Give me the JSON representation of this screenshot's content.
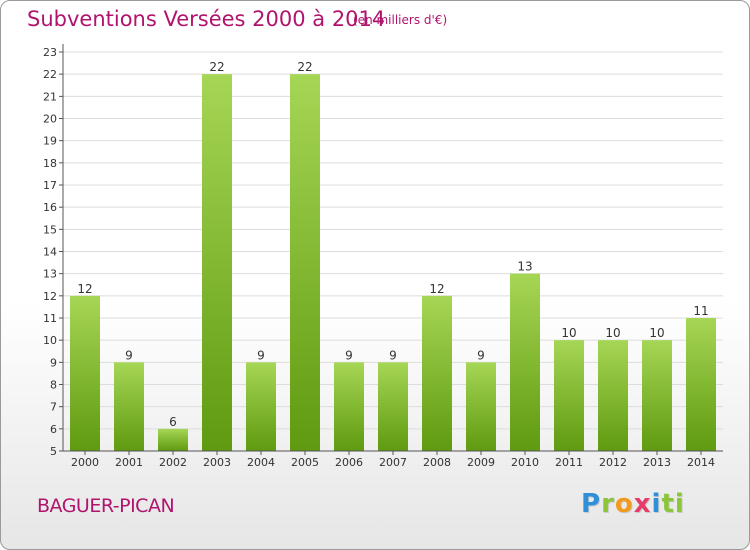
{
  "header": {
    "title": "Subventions Versées 2000 à 2014",
    "subtitle": "(en milliers d'€)"
  },
  "footer": {
    "commune": "BAGUER-PICAN",
    "logo_text": "Proxiti"
  },
  "colors": {
    "title": "#b0146d",
    "bar_top": "#a6d655",
    "bar_bottom": "#5f9a10",
    "grid": "#dcdcdc",
    "axis": "#555555"
  },
  "chart_data": {
    "type": "bar",
    "title": "Subventions Versées 2000 à 2014",
    "subtitle": "(en milliers d'€)",
    "categories": [
      "2000",
      "2001",
      "2002",
      "2003",
      "2004",
      "2005",
      "2006",
      "2007",
      "2008",
      "2009",
      "2010",
      "2011",
      "2012",
      "2013",
      "2014"
    ],
    "values": [
      12,
      9,
      6,
      22,
      9,
      22,
      9,
      9,
      12,
      9,
      13,
      10,
      10,
      10,
      11
    ],
    "ylim": [
      5,
      23
    ],
    "yticks": [
      5,
      6,
      7,
      8,
      9,
      10,
      11,
      12,
      13,
      14,
      15,
      16,
      17,
      18,
      19,
      20,
      21,
      22,
      23
    ],
    "grid": true,
    "xlabel": "",
    "ylabel": ""
  }
}
